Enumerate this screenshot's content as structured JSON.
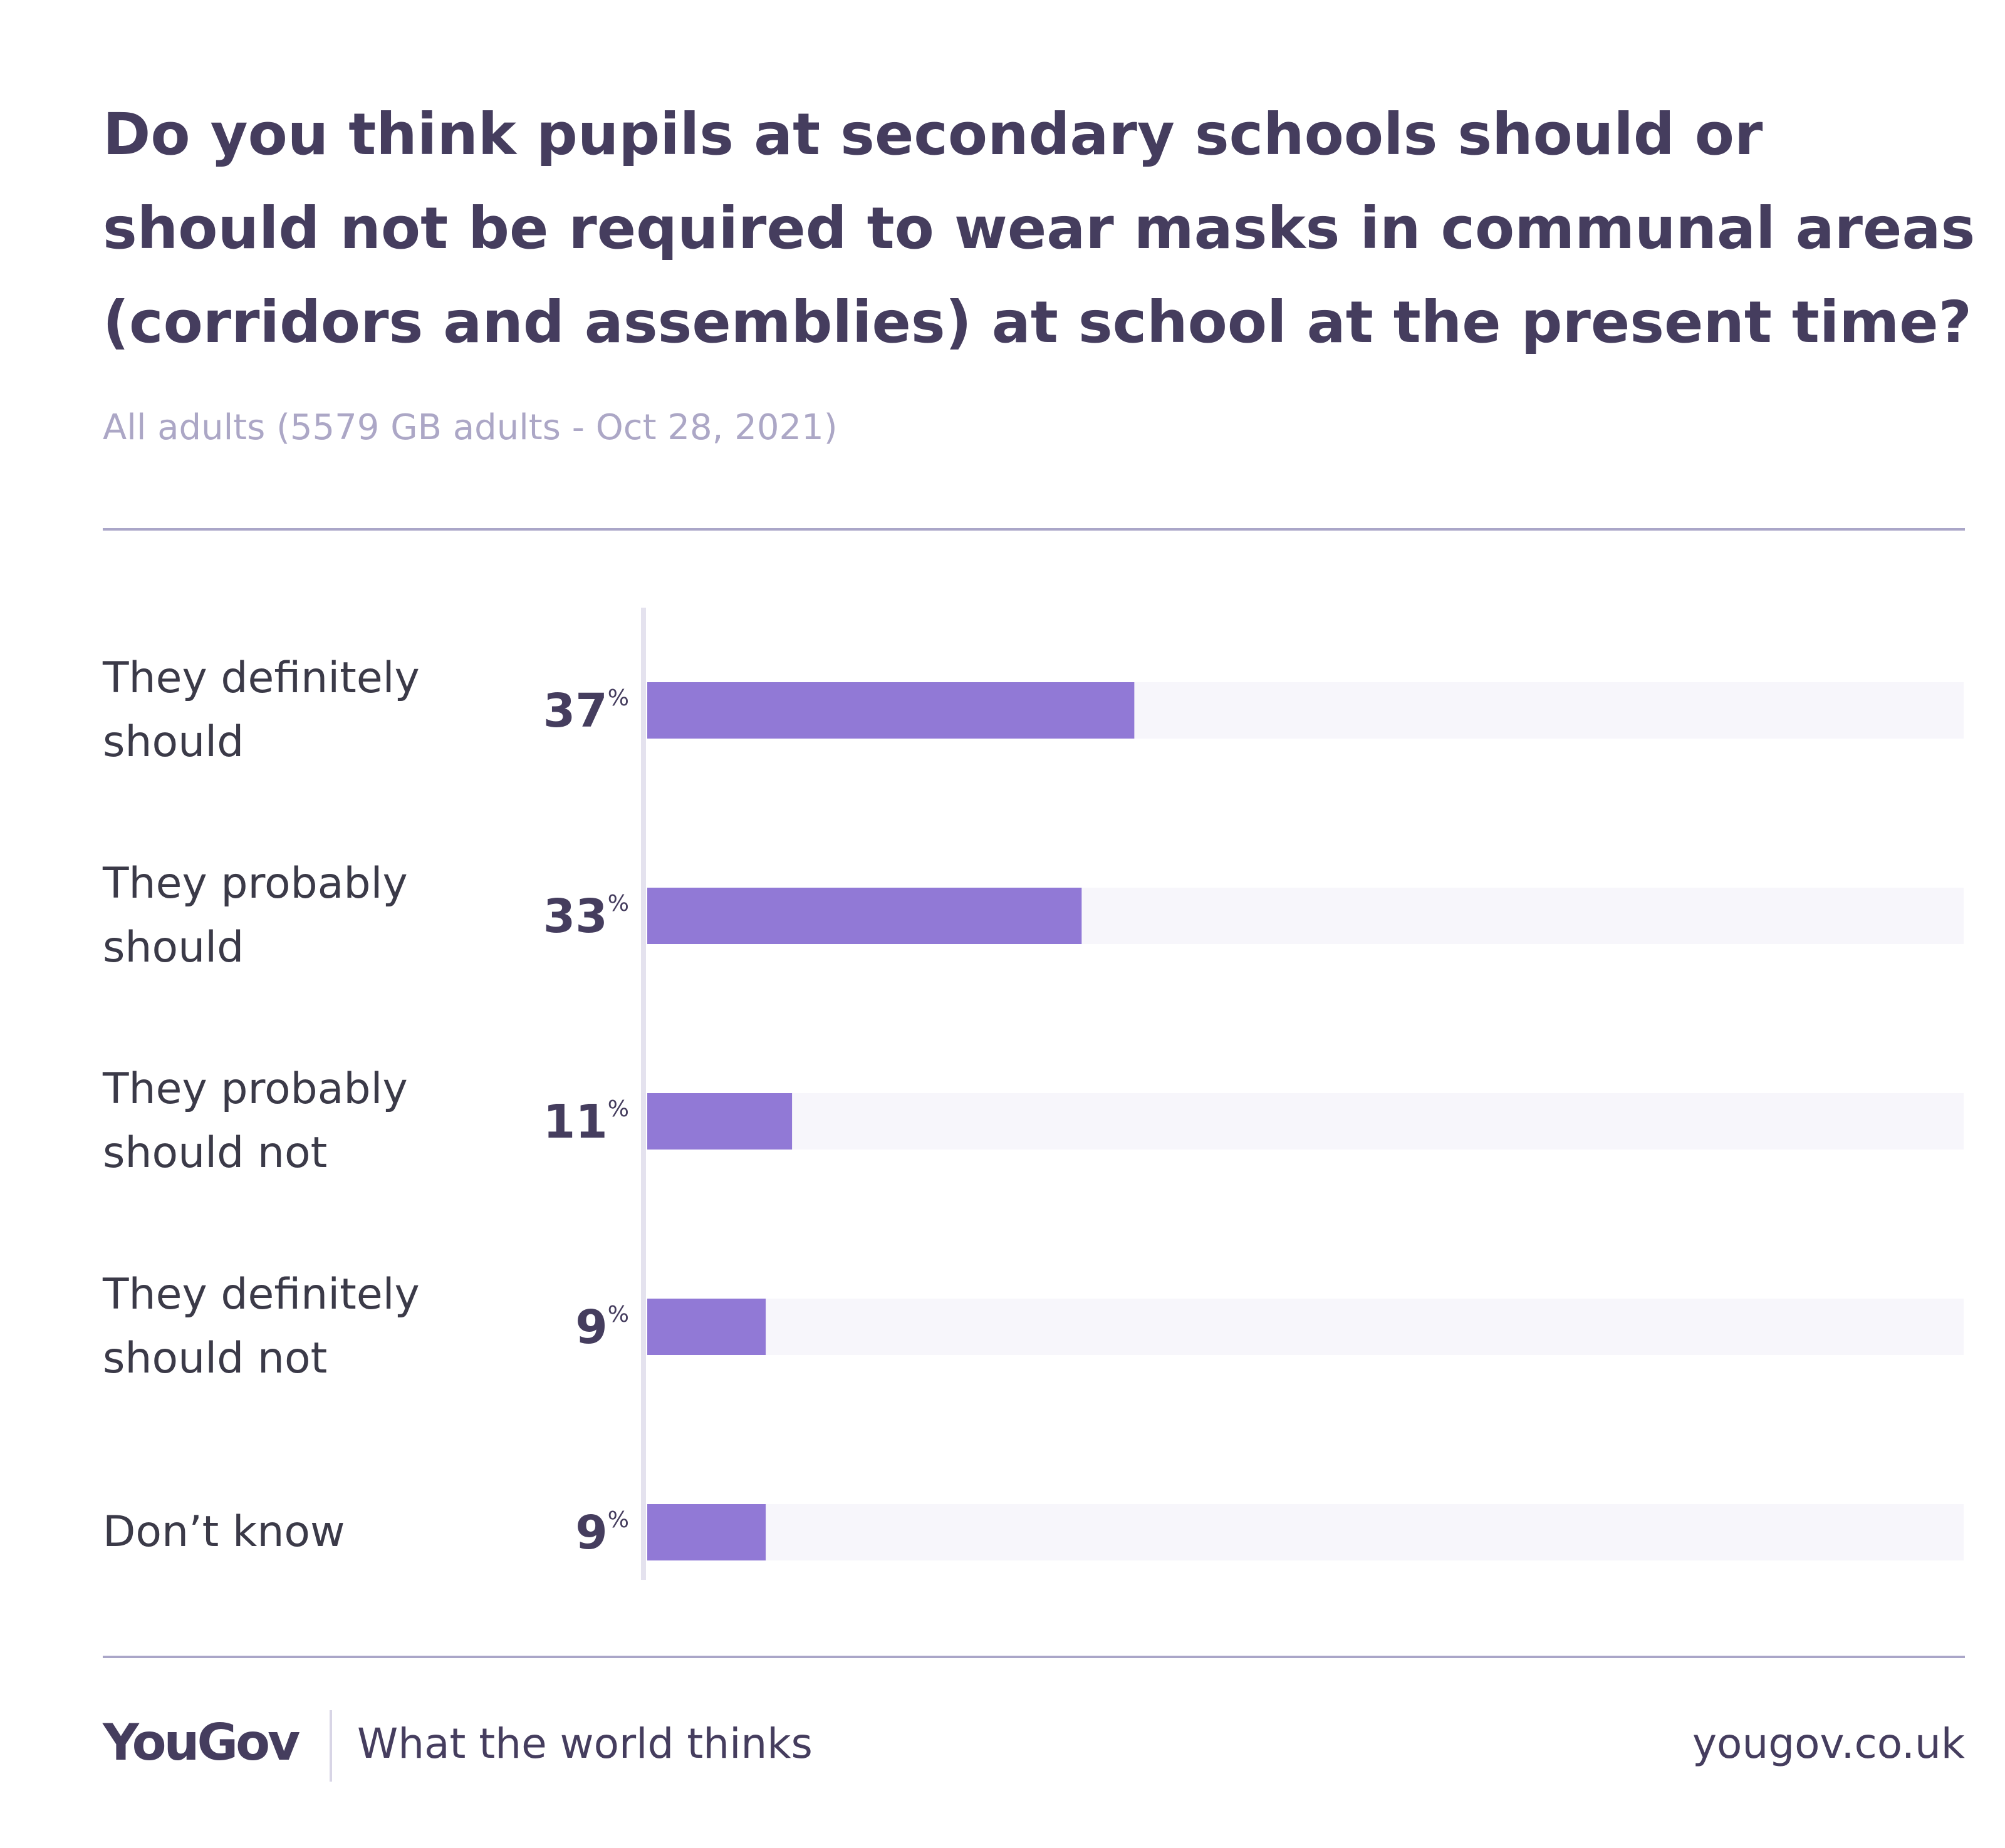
{
  "chart_data": {
    "type": "bar",
    "orientation": "horizontal",
    "title": "Do you think pupils at secondary schools should or should not be required to wear masks in communal areas (corridors and assemblies) at school at the present time?",
    "subtitle": "All adults (5579 GB adults - Oct 28, 2021)",
    "categories": [
      "They definitely should",
      "They probably should",
      "They probably should not",
      "They definitely should not",
      "Don’t know"
    ],
    "values": [
      37,
      33,
      11,
      9,
      9
    ],
    "value_labels": [
      "37%",
      "33%",
      "11%",
      "9%",
      "9%"
    ],
    "color": "#9179d6",
    "track_color": "#f7f6fb",
    "xlim": [
      0,
      100
    ]
  },
  "footer": {
    "brand": "YouGov",
    "tagline": "What the world thinks",
    "url": "yougov.co.uk"
  }
}
